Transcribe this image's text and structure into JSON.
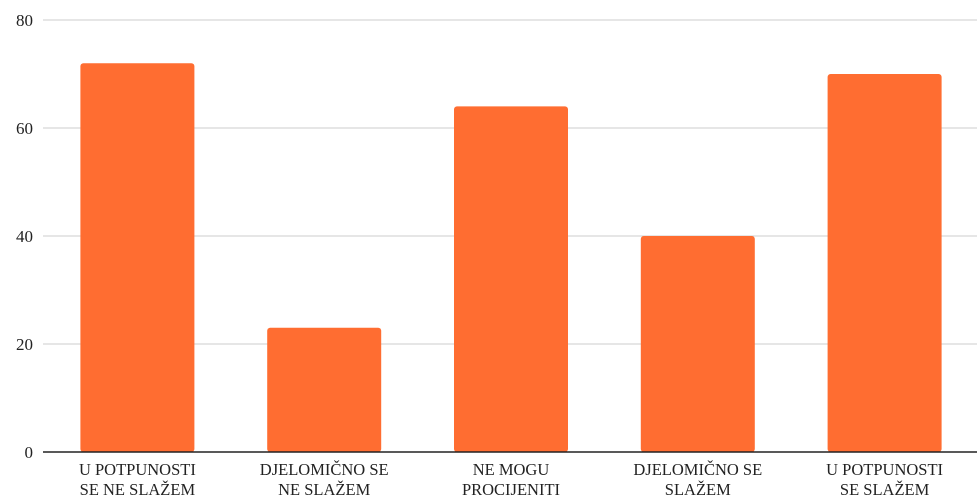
{
  "chart_data": {
    "type": "bar",
    "categories": [
      [
        "U POTPUNOSTI",
        "SE NE SLAŽEM"
      ],
      [
        "DJELOMIČNO SE",
        "NE SLAŽEM"
      ],
      [
        "NE MOGU",
        "PROCIJENITI"
      ],
      [
        "DJELOMIČNO SE",
        "SLAŽEM"
      ],
      [
        "U POTPUNOSTI",
        "SE SLAŽEM"
      ]
    ],
    "values": [
      72,
      23,
      64,
      40,
      70
    ],
    "ylim": [
      0,
      80
    ],
    "yticks": [
      "0",
      "20",
      "40",
      "60",
      "80"
    ],
    "grid": true,
    "bar_color": "#ff6d31",
    "grid_color": "#cccccc",
    "axis_color": "#222222"
  }
}
